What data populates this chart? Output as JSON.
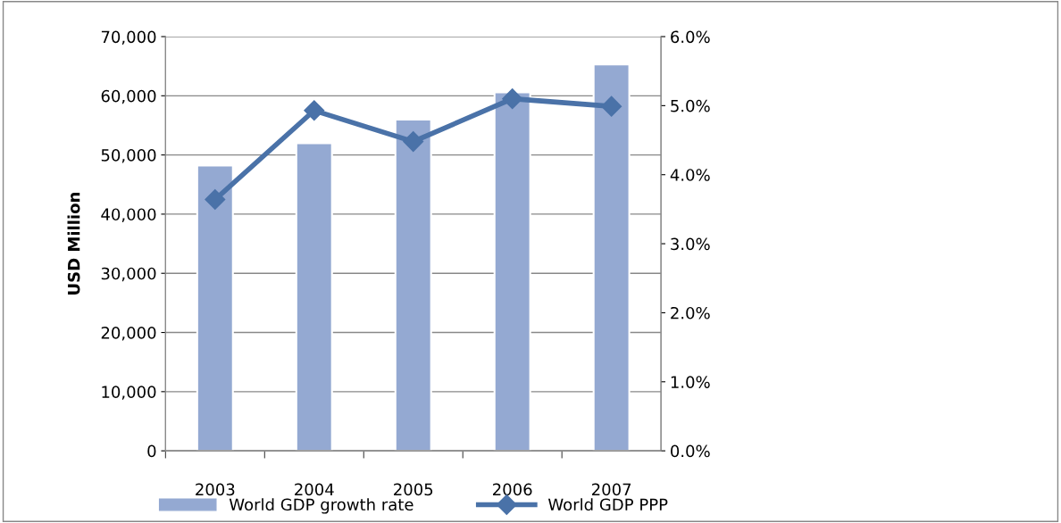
{
  "chart_data": {
    "type": "bar",
    "ylabel": "USD Million",
    "categories": [
      "2003",
      "2004",
      "2005",
      "2006",
      "2007"
    ],
    "series": [
      {
        "name": "World GDP growth rate",
        "color": "#94a9d2",
        "values": [
          48200,
          52000,
          56000,
          60600,
          65300
        ]
      },
      {
        "name": "World GDP PPP",
        "type": "line",
        "axis": "y2",
        "color": "#4a72a8",
        "marker": "diamond",
        "values": [
          3.64,
          4.93,
          4.48,
          5.1,
          4.99
        ]
      }
    ],
    "ylim": [
      0,
      70000
    ],
    "yticks": [
      {
        "value": 0,
        "label": "0"
      },
      {
        "value": 10000,
        "label": "10,000"
      },
      {
        "value": 20000,
        "label": "20,000"
      },
      {
        "value": 30000,
        "label": "30,000"
      },
      {
        "value": 40000,
        "label": "40,000"
      },
      {
        "value": 50000,
        "label": "50,000"
      },
      {
        "value": 60000,
        "label": "60,000"
      },
      {
        "value": 70000,
        "label": "70,000"
      }
    ],
    "y2lim": [
      0,
      6
    ],
    "y2ticks": [
      {
        "value": 0,
        "label": "0.0%"
      },
      {
        "value": 1,
        "label": "1.0%"
      },
      {
        "value": 2,
        "label": "2.0%"
      },
      {
        "value": 3,
        "label": "3.0%"
      },
      {
        "value": 4,
        "label": "4.0%"
      },
      {
        "value": 5,
        "label": "5.0%"
      },
      {
        "value": 6,
        "label": "6.0%"
      }
    ],
    "grid": "y",
    "legend": "bottom"
  }
}
